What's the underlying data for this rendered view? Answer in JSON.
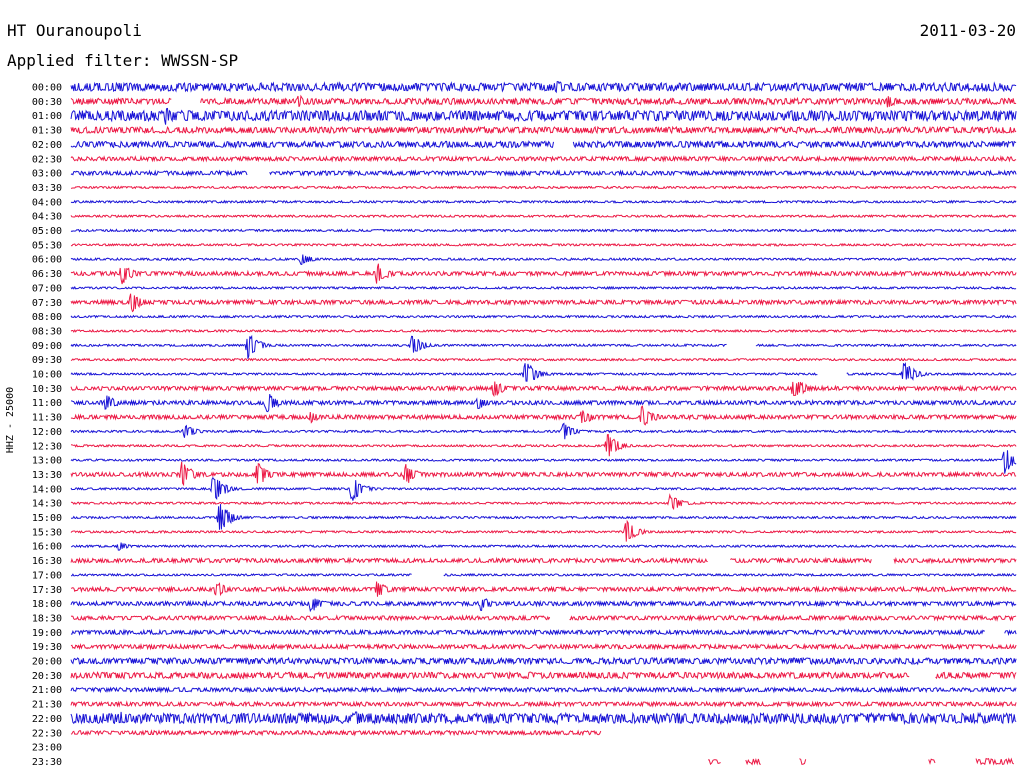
{
  "header": {
    "station": "HT Ouranoupoli",
    "filter": "Applied filter: WWSSN-SP",
    "date": "2011-03-20"
  },
  "colors": {
    "blue": "#1a14d6",
    "red": "#ec1a46",
    "ink": "#000000",
    "background": "#ffffff"
  },
  "chart_data": {
    "type": "helicorder",
    "ylabel": "HHZ - 25000",
    "title": "HT Ouranoupoli",
    "subtitle": "Applied filter: WWSSN-SP",
    "date": "2011-03-20",
    "line_minutes": 30,
    "ticks": [
      "00:00",
      "00:30",
      "01:00",
      "01:30",
      "02:00",
      "02:30",
      "03:00",
      "03:30",
      "04:00",
      "04:30",
      "05:00",
      "05:30",
      "06:00",
      "06:30",
      "07:00",
      "07:30",
      "08:00",
      "08:30",
      "09:00",
      "09:30",
      "10:00",
      "10:30",
      "11:00",
      "11:30",
      "12:00",
      "12:30",
      "13:00",
      "13:30",
      "14:00",
      "14:30",
      "15:00",
      "15:30",
      "16:00",
      "16:30",
      "17:00",
      "17:30",
      "18:00",
      "18:30",
      "19:00",
      "19:30",
      "20:00",
      "20:30",
      "21:00",
      "21:30",
      "22:00",
      "22:30",
      "23:00",
      "23:30"
    ],
    "line_colors": [
      "blue",
      "red"
    ],
    "noise_level": [
      4,
      3,
      5,
      3,
      3,
      2,
      2,
      1,
      1,
      1,
      1,
      1,
      1,
      2,
      1,
      2,
      1,
      1,
      1,
      1,
      1,
      2,
      2,
      2,
      1,
      1,
      1,
      2,
      1,
      1,
      1,
      1,
      1,
      2,
      1,
      2,
      2,
      2,
      2,
      2,
      3,
      3,
      2,
      2,
      5,
      2,
      0,
      0
    ],
    "data_end": {
      "line": 45,
      "minute": 16.8
    },
    "gaps": [
      {
        "line": 1,
        "start": 3.2,
        "end": 4.1
      },
      {
        "line": 4,
        "start": 15.3,
        "end": 15.9
      },
      {
        "line": 6,
        "start": 5.6,
        "end": 6.3
      },
      {
        "line": 18,
        "start": 20.8,
        "end": 21.7
      },
      {
        "line": 20,
        "start": 23.7,
        "end": 24.6
      },
      {
        "line": 33,
        "start": 20.2,
        "end": 20.9
      },
      {
        "line": 33,
        "start": 25.4,
        "end": 26.1
      },
      {
        "line": 34,
        "start": 10.8,
        "end": 11.8
      },
      {
        "line": 37,
        "start": 15.2,
        "end": 15.8
      },
      {
        "line": 38,
        "start": 29.0,
        "end": 29.6
      },
      {
        "line": 41,
        "start": 26.6,
        "end": 27.4
      }
    ],
    "events": [
      {
        "line": 0,
        "minute": 15.4,
        "amp": 8
      },
      {
        "line": 1,
        "minute": 7.2,
        "amp": 7
      },
      {
        "line": 1,
        "minute": 25.9,
        "amp": 7
      },
      {
        "line": 2,
        "minute": 3.0,
        "amp": 9
      },
      {
        "line": 2,
        "minute": 12.8,
        "amp": 6
      },
      {
        "line": 12,
        "minute": 7.3,
        "amp": 6
      },
      {
        "line": 13,
        "minute": 1.6,
        "amp": 12
      },
      {
        "line": 13,
        "minute": 9.7,
        "amp": 12
      },
      {
        "line": 15,
        "minute": 1.9,
        "amp": 11
      },
      {
        "line": 18,
        "minute": 5.6,
        "amp": 14
      },
      {
        "line": 18,
        "minute": 10.8,
        "amp": 12
      },
      {
        "line": 20,
        "minute": 14.4,
        "amp": 15
      },
      {
        "line": 20,
        "minute": 26.4,
        "amp": 14
      },
      {
        "line": 21,
        "minute": 13.4,
        "amp": 10
      },
      {
        "line": 21,
        "minute": 22.9,
        "amp": 14
      },
      {
        "line": 22,
        "minute": 1.1,
        "amp": 9
      },
      {
        "line": 22,
        "minute": 6.2,
        "amp": 12
      },
      {
        "line": 22,
        "minute": 12.9,
        "amp": 7
      },
      {
        "line": 23,
        "minute": 7.6,
        "amp": 6
      },
      {
        "line": 23,
        "minute": 16.2,
        "amp": 9
      },
      {
        "line": 23,
        "minute": 18.1,
        "amp": 13
      },
      {
        "line": 24,
        "minute": 3.6,
        "amp": 8
      },
      {
        "line": 24,
        "minute": 15.6,
        "amp": 10
      },
      {
        "line": 25,
        "minute": 17.0,
        "amp": 14
      },
      {
        "line": 26,
        "minute": 29.6,
        "amp": 14
      },
      {
        "line": 27,
        "minute": 3.5,
        "amp": 15
      },
      {
        "line": 27,
        "minute": 5.9,
        "amp": 15
      },
      {
        "line": 27,
        "minute": 10.6,
        "amp": 12
      },
      {
        "line": 28,
        "minute": 4.5,
        "amp": 16
      },
      {
        "line": 28,
        "minute": 8.9,
        "amp": 14
      },
      {
        "line": 29,
        "minute": 19.0,
        "amp": 10
      },
      {
        "line": 30,
        "minute": 4.7,
        "amp": 18
      },
      {
        "line": 31,
        "minute": 17.6,
        "amp": 12
      },
      {
        "line": 32,
        "minute": 1.5,
        "amp": 5
      },
      {
        "line": 35,
        "minute": 4.6,
        "amp": 9
      },
      {
        "line": 35,
        "minute": 9.7,
        "amp": 9
      },
      {
        "line": 36,
        "minute": 7.6,
        "amp": 10
      },
      {
        "line": 36,
        "minute": 13.0,
        "amp": 8
      },
      {
        "line": 41,
        "minute": 14.5,
        "amp": 5
      },
      {
        "line": 44,
        "minute": 1.6,
        "amp": 8
      },
      {
        "line": 44,
        "minute": 9.0,
        "amp": 8
      }
    ]
  }
}
